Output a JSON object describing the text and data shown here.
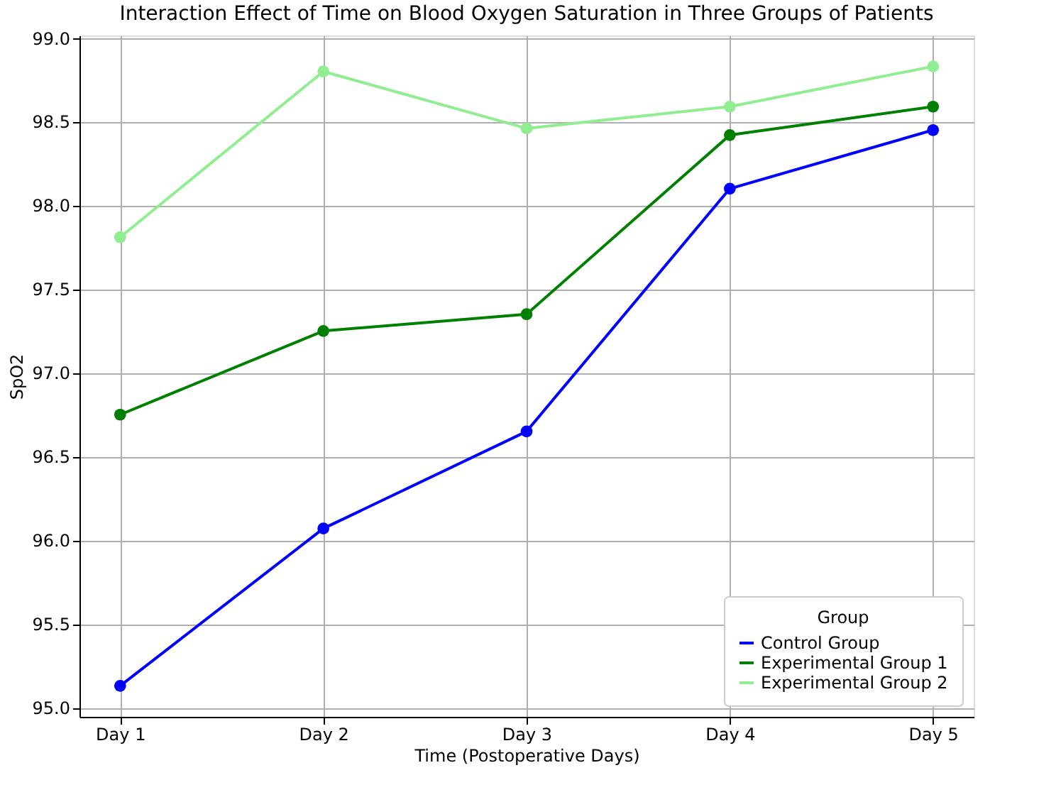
{
  "chart_data": {
    "type": "line",
    "title": "Interaction Effect of Time on Blood Oxygen Saturation in Three Groups of Patients",
    "xlabel": "Time (Postoperative Days)",
    "ylabel": "SpO2",
    "legend_title": "Group",
    "categories": [
      "Day 1",
      "Day 2",
      "Day 3",
      "Day 4",
      "Day 5"
    ],
    "series": [
      {
        "name": "Control Group",
        "color": "#0000ff",
        "values": [
          95.13,
          96.07,
          96.65,
          98.1,
          98.45
        ]
      },
      {
        "name": "Experimental Group 1",
        "color": "#008000",
        "values": [
          96.75,
          97.25,
          97.35,
          98.42,
          98.59
        ]
      },
      {
        "name": "Experimental Group 2",
        "color": "#90ee90",
        "values": [
          97.81,
          98.8,
          98.46,
          98.59,
          98.83
        ]
      }
    ],
    "ylim": [
      94.945,
      99.015
    ],
    "yticks": [
      {
        "value": 95,
        "label": "95.0"
      },
      95.5,
      {
        "value": 96,
        "label": "96.0"
      },
      96.5,
      {
        "value": 97,
        "label": "97.0"
      },
      97.5,
      {
        "value": 98,
        "label": "98.0"
      },
      98.5,
      {
        "value": 99,
        "label": "99.0"
      }
    ],
    "grid": true,
    "legend": "bottom right",
    "marker": "circle",
    "line_style": "solid"
  }
}
